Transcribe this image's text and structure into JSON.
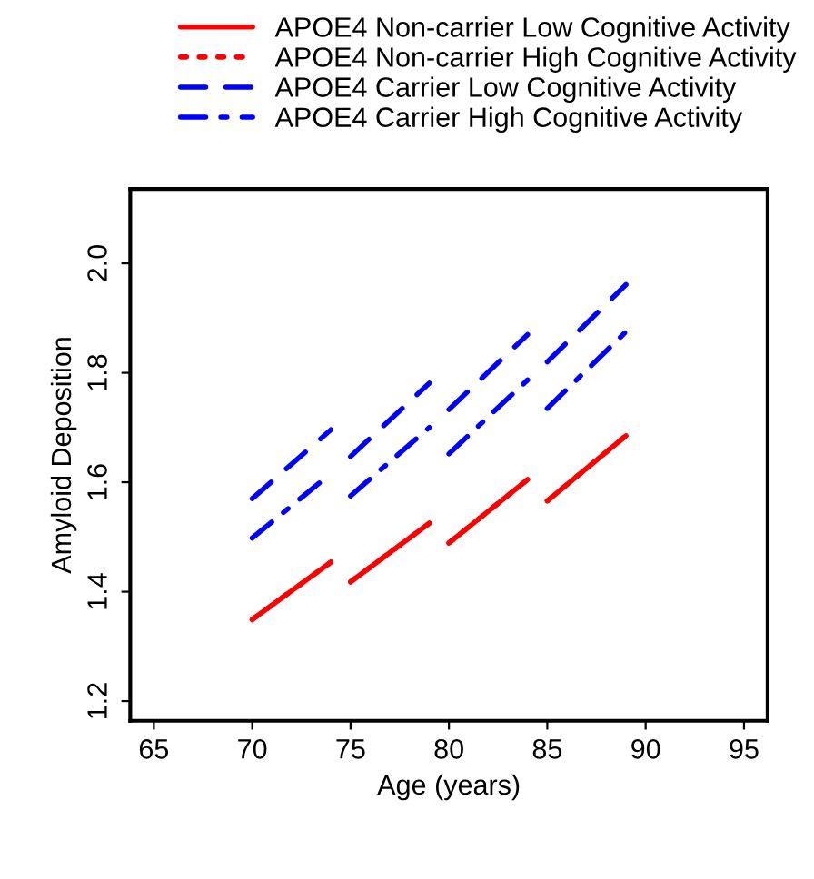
{
  "chart_data": {
    "type": "line",
    "xlabel": "Age (years)",
    "ylabel": "Amyloid Deposition",
    "xlim": [
      63.8,
      96.2
    ],
    "xticks": [
      65,
      70,
      75,
      80,
      85,
      90,
      95
    ],
    "ylim": [
      1.164,
      2.136
    ],
    "yticks": [
      1.2,
      1.4,
      1.6,
      1.8,
      {
        "value": 2,
        "label": "2.0"
      }
    ],
    "grid": false,
    "legend": "top",
    "marker": "none",
    "series": [
      {
        "name": "APOE4 Non-carrier Low Cognitive Activity",
        "color": "#ff0000",
        "line_style": "solid",
        "x": [
          70,
          74,
          74.5,
          75,
          79,
          79.5,
          80,
          84,
          84.5,
          85,
          89
        ],
        "values": [
          1.349,
          1.454,
          null,
          1.418,
          1.525,
          null,
          1.489,
          1.605,
          null,
          1.566,
          1.685
        ]
      },
      {
        "name": "APOE4 Non-carrier High Cognitive Activity",
        "color": "#ff0000",
        "line_style": "dotted",
        "x": [
          70,
          74,
          74.5,
          75,
          79,
          79.5,
          80,
          84,
          84.5,
          85,
          89
        ],
        "values": [
          1.349,
          1.454,
          null,
          1.418,
          1.525,
          null,
          1.489,
          1.605,
          null,
          1.566,
          1.685
        ]
      },
      {
        "name": "APOE4 Carrier Low Cognitive Activity",
        "color": "#0000ff",
        "line_style": "dashed",
        "x": [
          70,
          74,
          74.5,
          75,
          79,
          79.5,
          80,
          84,
          84.5,
          85,
          89
        ],
        "values": [
          1.57,
          1.696,
          null,
          1.647,
          1.781,
          null,
          1.733,
          1.87,
          null,
          1.82,
          1.961
        ]
      },
      {
        "name": "APOE4 Carrier High Cognitive Activity",
        "color": "#0000ff",
        "line_style": "dashdot",
        "x": [
          70,
          74,
          74.5,
          75,
          79,
          79.5,
          80,
          84,
          84.5,
          85,
          89
        ],
        "values": [
          1.498,
          1.616,
          null,
          1.575,
          1.7,
          null,
          1.652,
          1.787,
          null,
          1.735,
          1.875
        ]
      }
    ]
  }
}
